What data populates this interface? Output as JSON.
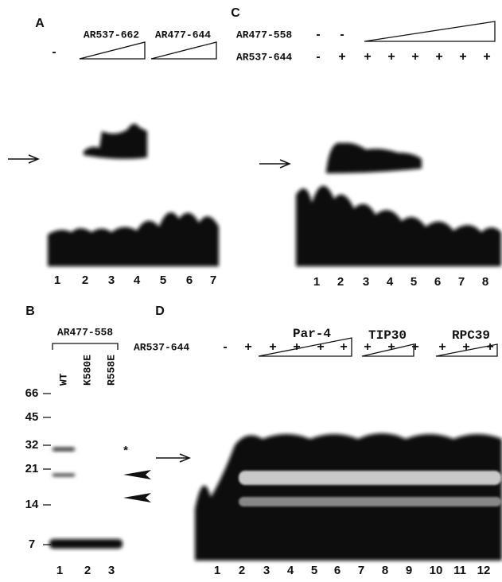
{
  "panel_a": {
    "label": "A",
    "control": "-",
    "constructs": [
      "AR537-662",
      "AR477-644"
    ],
    "lanes": [
      "1",
      "2",
      "3",
      "4",
      "5",
      "6",
      "7"
    ]
  },
  "panel_b": {
    "label": "B",
    "construct": "AR477-558",
    "samples": [
      "WT",
      "K580E",
      "R558E"
    ],
    "markers": [
      "66",
      "45",
      "32",
      "21",
      "14",
      "7"
    ],
    "band_note": "*",
    "lanes": [
      "1",
      "2",
      "3"
    ]
  },
  "panel_c": {
    "label": "C",
    "rows": [
      {
        "name": "AR477-558",
        "marks": [
          "-",
          "-"
        ]
      },
      {
        "name": "AR537-644",
        "marks": [
          "-",
          "+",
          "+",
          "+",
          "+",
          "+",
          "+",
          "+"
        ]
      }
    ],
    "lanes": [
      "1",
      "2",
      "3",
      "4",
      "5",
      "6",
      "7",
      "8"
    ]
  },
  "panel_d": {
    "label": "D",
    "titrations": [
      "Par-4",
      "TIP30",
      "RPC39"
    ],
    "row": {
      "name": "AR537-644",
      "marks": [
        "-",
        "+",
        "+",
        "+",
        "+",
        "+",
        "+",
        "+",
        "+",
        "+",
        "+",
        "+"
      ]
    },
    "lanes": [
      "1",
      "2",
      "3",
      "4",
      "5",
      "6",
      "7",
      "8",
      "9",
      "10",
      "11",
      "12"
    ]
  }
}
